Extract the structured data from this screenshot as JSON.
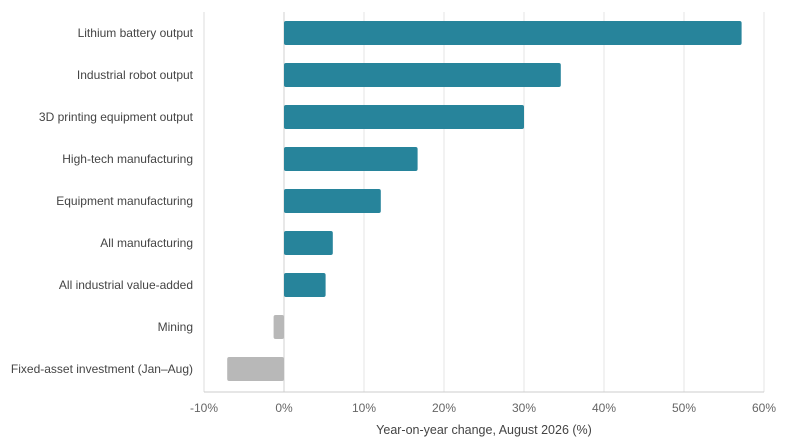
{
  "chart_data": {
    "type": "bar",
    "orientation": "horizontal",
    "categories": [
      "Lithium battery output",
      "Industrial robot output",
      "3D printing equipment output",
      "High-tech manufacturing",
      "Equipment manufacturing",
      "All manufacturing",
      "All industrial value-added",
      "Mining",
      "Fixed-asset investment (Jan–Aug)"
    ],
    "values": [
      57.2,
      34.6,
      30.0,
      16.7,
      12.1,
      6.1,
      5.2,
      -1.3,
      -7.1
    ],
    "xlabel": "Year-on-year change, August 2026 (%)",
    "ylabel": "",
    "xlim": [
      -10,
      60
    ],
    "xticks": [
      -10,
      0,
      10,
      20,
      30,
      40,
      50,
      60
    ],
    "xtick_labels": [
      "-10%",
      "0%",
      "10%",
      "20%",
      "30%",
      "40%",
      "50%",
      "60%"
    ],
    "grid": true,
    "legend": "none",
    "colors": {
      "positive": "#27849b",
      "negative": "#b8b8b8"
    }
  }
}
